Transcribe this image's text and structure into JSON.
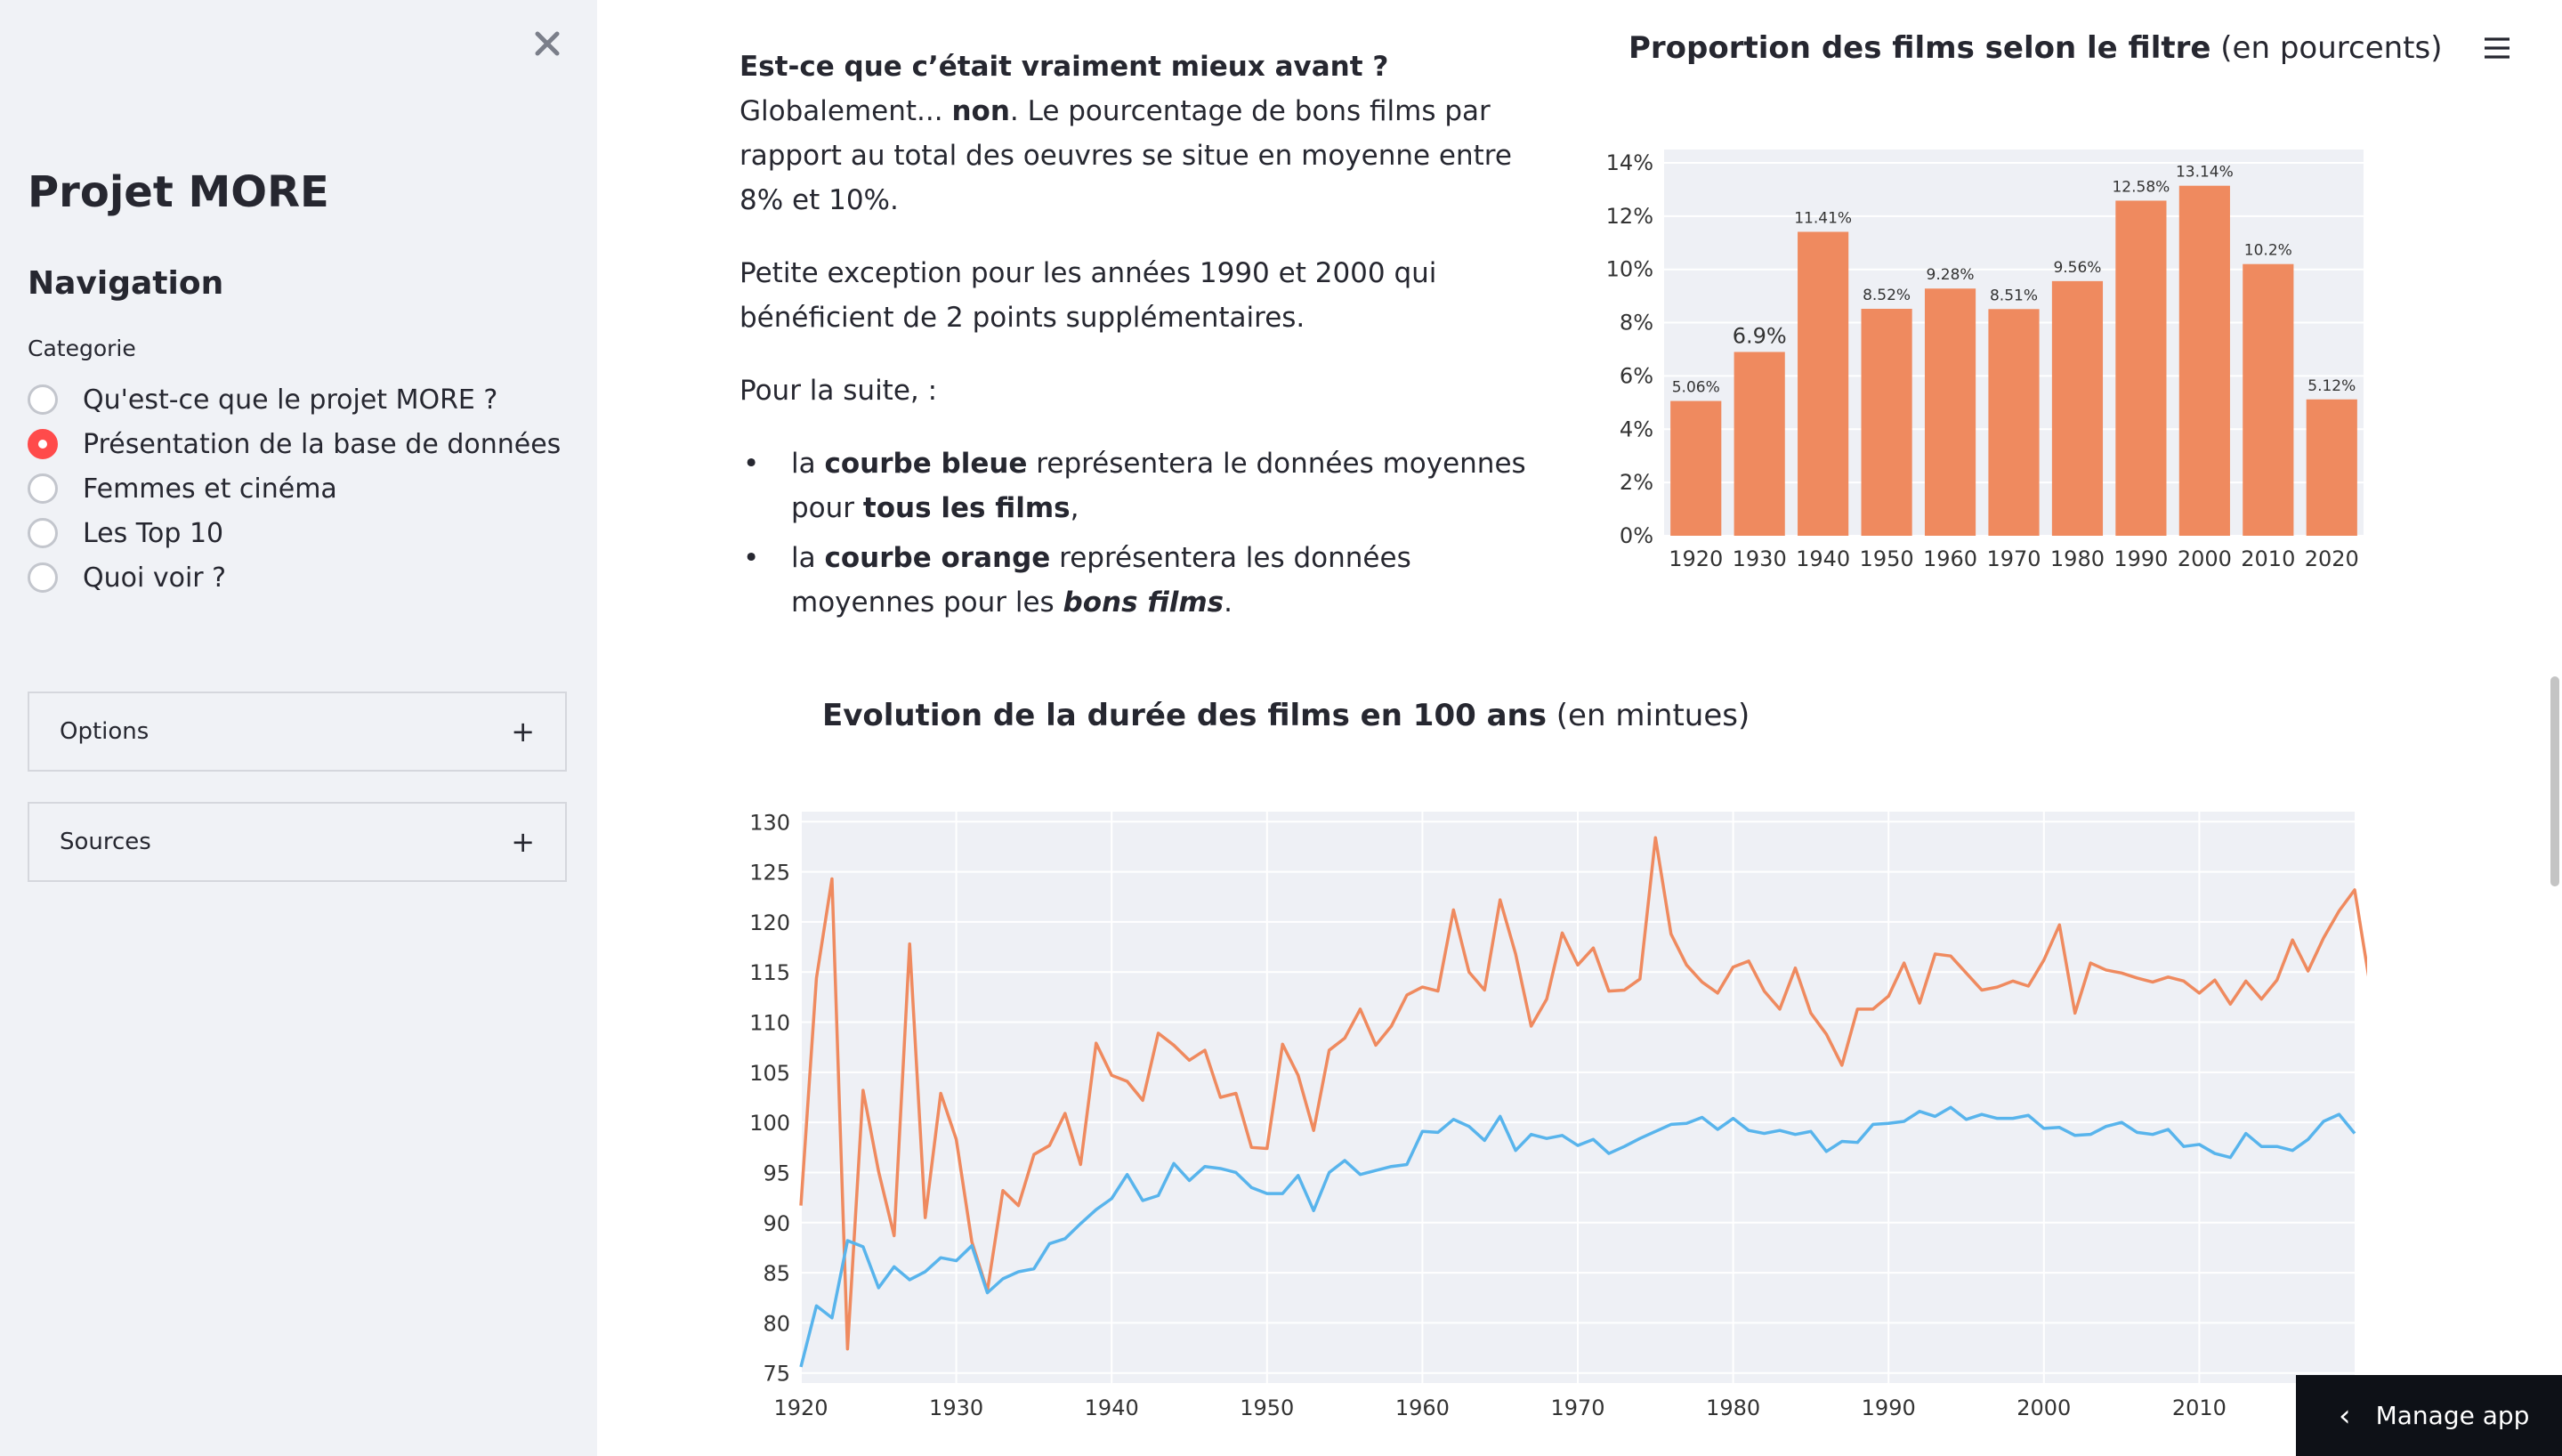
{
  "sidebar": {
    "title": "Projet MORE",
    "navigation_heading": "Navigation",
    "category_label": "Categorie",
    "radio_options": [
      "Qu'est-ce que le projet MORE ?",
      "Présentation de la base de données",
      "Femmes et cinéma",
      "Les Top 10",
      "Quoi voir ?"
    ],
    "selected_option": "Présentation de la base de données",
    "expanders": {
      "options": "Options",
      "sources": "Sources"
    },
    "accent_color": "#ff4b4b"
  },
  "intro": {
    "p1_bold": "Est-ce que c’était vraiment mieux avant ?",
    "p1_mid": " Globalement... ",
    "p1_bold2": "non",
    "p1_rest": ". Le pourcentage de bons films par rapport au total des oeuvres se situe en moyenne entre 8% et 10%.",
    "p2": "Petite exception pour les années 1990 et 2000 qui bénéficient de 2 points supplémentaires.",
    "p3": "Pour la suite, :",
    "li1_a": "la ",
    "li1_b": "courbe bleue",
    "li1_c": " représentera le données moyennes pour ",
    "li1_d": "tous les films",
    "li1_e": ",",
    "li2_a": "la ",
    "li2_b": "courbe orange",
    "li2_c": " représentera les données moyennes pour les ",
    "li2_d": "bons films",
    "li2_e": "."
  },
  "bar_title": {
    "bold": "Proportion des films selon le filtre",
    "rest": " (en pourcents)"
  },
  "line_title": {
    "bold": "Evolution de la durée des films en 100 ans",
    "rest": " (en mintues)"
  },
  "manage_app": "Manage app",
  "chart_data": [
    {
      "type": "bar",
      "categories": [
        "1920",
        "1930",
        "1940",
        "1950",
        "1960",
        "1970",
        "1980",
        "1990",
        "2000",
        "2010",
        "2020"
      ],
      "values": [
        5.06,
        6.9,
        11.41,
        8.52,
        9.28,
        8.51,
        9.56,
        12.58,
        13.14,
        10.2,
        5.12
      ],
      "value_labels": [
        "5.06%",
        "6.9%",
        "11.41%",
        "8.52%",
        "9.28%",
        "8.51%",
        "9.56%",
        "12.58%",
        "13.14%",
        "10.2%",
        "5.12%"
      ],
      "yticks": [
        "0%",
        "2%",
        "4%",
        "6%",
        "8%",
        "10%",
        "12%",
        "14%"
      ],
      "ylim": [
        0,
        14.5
      ],
      "color": "#ef8a5f",
      "grid": true
    },
    {
      "type": "line",
      "x_start": 1920,
      "x_end": 2020,
      "xticks": [
        "1920",
        "1930",
        "1940",
        "1950",
        "1960",
        "1970",
        "1980",
        "1990",
        "2000",
        "2010"
      ],
      "yticks": [
        "75",
        "80",
        "85",
        "90",
        "95",
        "100",
        "105",
        "110",
        "115",
        "120",
        "125",
        "130"
      ],
      "ylim": [
        74,
        131
      ],
      "grid": true,
      "series": [
        {
          "color": "#ef8a5f",
          "values": [
            91.7,
            114.4,
            124.3,
            77.4,
            103.2,
            95.1,
            88.7,
            117.8,
            90.5,
            102.9,
            98.3,
            88.1,
            83.2,
            93.2,
            91.7,
            96.8,
            97.7,
            100.9,
            95.8,
            107.9,
            104.7,
            104.1,
            102.2,
            108.9,
            107.7,
            106.2,
            107.2,
            102.5,
            102.9,
            97.5,
            97.4,
            107.8,
            104.7,
            99.2,
            107.2,
            108.4,
            111.3,
            107.7,
            109.6,
            112.7,
            113.5,
            113.1,
            121.2,
            115.0,
            113.2,
            122.2,
            116.8,
            109.6,
            112.3,
            118.9,
            115.7,
            117.4,
            113.1,
            113.2,
            114.3,
            128.4,
            118.8,
            115.7,
            114.0,
            112.9,
            115.5,
            116.1,
            113.1,
            111.3,
            115.4,
            110.9,
            108.8,
            105.7,
            111.3,
            111.3,
            112.6,
            115.9,
            111.9,
            116.8,
            116.6,
            114.9,
            113.2,
            113.5,
            114.1,
            113.6,
            116.2,
            119.7,
            110.9,
            115.9,
            115.2,
            114.9,
            114.4,
            114.0,
            114.5,
            114.1,
            112.9,
            114.2,
            111.8,
            114.1,
            112.3,
            114.2,
            118.2,
            115.1,
            118.4,
            121.1,
            123.2,
            113.6
          ]
        },
        {
          "color": "#58b4ec",
          "values": [
            75.6,
            81.7,
            80.5,
            88.2,
            87.6,
            83.5,
            85.6,
            84.3,
            85.1,
            86.5,
            86.2,
            87.7,
            83.0,
            84.4,
            85.1,
            85.4,
            87.9,
            88.4,
            89.9,
            91.3,
            92.4,
            94.8,
            92.2,
            92.7,
            95.9,
            94.2,
            95.6,
            95.4,
            95.0,
            93.5,
            92.9,
            92.9,
            94.7,
            91.2,
            95.0,
            96.2,
            94.8,
            95.2,
            95.6,
            95.8,
            99.1,
            99.0,
            100.3,
            99.6,
            98.2,
            100.6,
            97.2,
            98.8,
            98.4,
            98.7,
            97.7,
            98.3,
            96.9,
            97.6,
            98.4,
            99.1,
            99.8,
            99.9,
            100.5,
            99.3,
            100.4,
            99.2,
            98.9,
            99.2,
            98.8,
            99.1,
            97.1,
            98.1,
            98.0,
            99.8,
            99.9,
            100.1,
            101.1,
            100.6,
            101.5,
            100.3,
            100.8,
            100.4,
            100.4,
            100.7,
            99.4,
            99.5,
            98.7,
            98.8,
            99.6,
            100.0,
            99.0,
            98.8,
            99.3,
            97.6,
            97.8,
            96.9,
            96.5,
            98.9,
            97.6,
            97.6,
            97.2,
            98.3,
            100.1,
            100.8,
            98.9
          ]
        }
      ]
    }
  ]
}
